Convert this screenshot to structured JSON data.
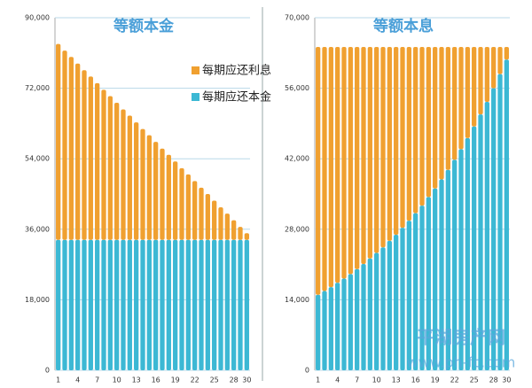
{
  "chart_data": [
    {
      "type": "stacked_bar",
      "title": "等额本金",
      "legend": "upper right",
      "categories": [
        "1",
        null,
        null,
        "4",
        null,
        null,
        "7",
        null,
        null,
        "10",
        null,
        null,
        "13",
        null,
        null,
        "16",
        null,
        null,
        "19",
        null,
        null,
        "22",
        null,
        null,
        "25",
        null,
        null,
        "28",
        null,
        "30"
      ],
      "series": [
        {
          "name": "每期应还利息",
          "color": "#f0a030",
          "values": [
            50000,
            48300,
            46700,
            45000,
            43300,
            41700,
            40000,
            38300,
            36700,
            35000,
            33300,
            31700,
            30000,
            28300,
            26700,
            25000,
            23300,
            21700,
            20000,
            18300,
            16700,
            15000,
            13300,
            11700,
            10000,
            8300,
            6700,
            5000,
            3300,
            1700
          ]
        },
        {
          "name": "每期应还本金",
          "color": "#3cb8d4",
          "values": [
            33300,
            33300,
            33300,
            33300,
            33300,
            33300,
            33300,
            33300,
            33300,
            33300,
            33300,
            33300,
            33300,
            33300,
            33300,
            33300,
            33300,
            33300,
            33300,
            33300,
            33300,
            33300,
            33300,
            33300,
            33300,
            33300,
            33300,
            33300,
            33300,
            33300
          ]
        }
      ],
      "ylim": [
        0,
        90000
      ],
      "yticks": [
        0,
        {
          "value": 18000,
          "label": "18,000"
        },
        {
          "value": 36000,
          "label": "36,000"
        },
        {
          "value": 54000,
          "label": "54,000"
        },
        {
          "value": 72000,
          "label": "72,000"
        },
        {
          "value": 90000,
          "label": "90,000"
        }
      ],
      "grid": true
    },
    {
      "type": "stacked_bar",
      "title": "等额本息",
      "categories": [
        "1",
        null,
        null,
        "4",
        null,
        null,
        "7",
        null,
        null,
        "10",
        null,
        null,
        "13",
        null,
        null,
        "16",
        null,
        null,
        "19",
        null,
        null,
        "22",
        null,
        null,
        "25",
        null,
        null,
        "28",
        null,
        "30"
      ],
      "series": [
        {
          "color": "#f0a030",
          "values": [
            49200,
            48450,
            47700,
            46800,
            46000,
            45100,
            44100,
            43100,
            42000,
            40900,
            39800,
            38500,
            37300,
            35900,
            34500,
            33000,
            31500,
            29800,
            28100,
            26300,
            24400,
            22400,
            20300,
            18100,
            15800,
            13400,
            10900,
            8200,
            5400,
            2500
          ]
        },
        {
          "color": "#3cb8d4",
          "values": [
            15000,
            15750,
            16500,
            17400,
            18200,
            19100,
            20100,
            21100,
            22200,
            23300,
            24400,
            25700,
            26900,
            28300,
            29700,
            31200,
            32700,
            34400,
            36100,
            37900,
            39800,
            41800,
            43900,
            46100,
            48400,
            50800,
            53300,
            56000,
            58800,
            61700
          ]
        }
      ],
      "ylim": [
        0,
        70000
      ],
      "yticks": [
        0,
        {
          "value": 14000,
          "label": "14,000"
        },
        {
          "value": 28000,
          "label": "28,000"
        },
        {
          "value": 42000,
          "label": "42,000"
        },
        {
          "value": 56000,
          "label": "56,000"
        },
        {
          "value": 70000,
          "label": "70,000"
        }
      ],
      "grid": true
    }
  ],
  "watermark": {
    "title": "平湖房产网",
    "url": "www.ph-fc.com"
  }
}
